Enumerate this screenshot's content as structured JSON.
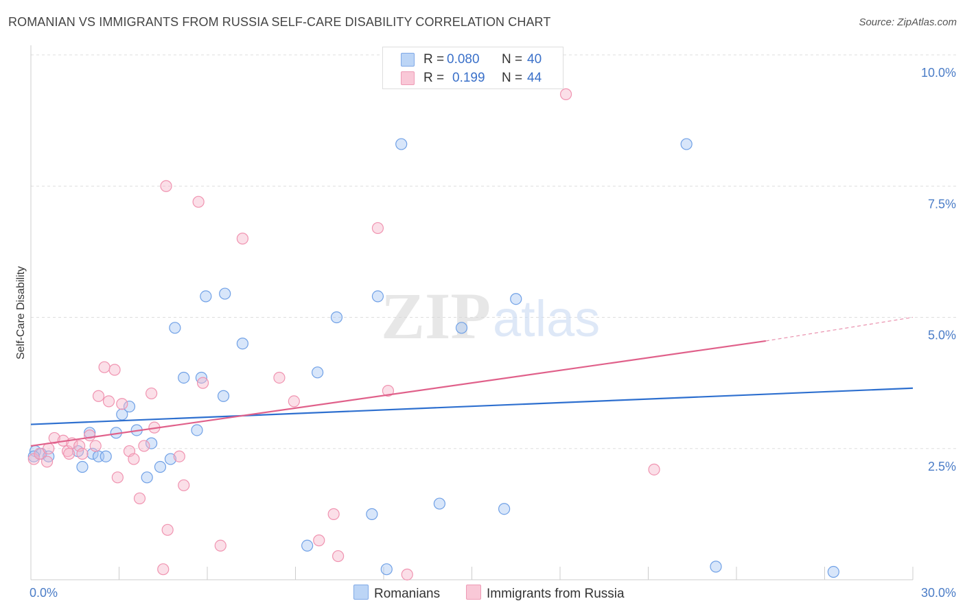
{
  "title": "ROMANIAN VS IMMIGRANTS FROM RUSSIA SELF-CARE DISABILITY CORRELATION CHART",
  "source": "Source: ZipAtlas.com",
  "watermark": {
    "zip": "ZIP",
    "atlas": "atlas"
  },
  "legend": {
    "rows": [
      {
        "r_label": "R =",
        "r_value": "0.080",
        "n_label": "N =",
        "n_value": "40",
        "color": "#a9c8f3"
      },
      {
        "r_label": "R =",
        "r_value": "0.199",
        "n_label": "N =",
        "n_value": "44",
        "color": "#f7b8cb"
      }
    ]
  },
  "bottom_legend": {
    "items": [
      {
        "label": "Romanians",
        "color": "#a9c8f3"
      },
      {
        "label": "Immigrants from Russia",
        "color": "#f7b8cb"
      }
    ]
  },
  "chart_data": {
    "type": "scatter",
    "title": "ROMANIAN VS IMMIGRANTS FROM RUSSIA SELF-CARE DISABILITY CORRELATION CHART",
    "xlabel": "",
    "ylabel": "Self-Care Disability",
    "xlim": [
      0,
      30
    ],
    "ylim": [
      0,
      10
    ],
    "x_tick_labels": [
      {
        "value": 0,
        "label": "0.0%"
      },
      {
        "value": 30,
        "label": "30.0%"
      }
    ],
    "y_tick_labels": [
      {
        "value": 2.5,
        "label": "2.5%"
      },
      {
        "value": 5.0,
        "label": "5.0%"
      },
      {
        "value": 7.5,
        "label": "7.5%"
      },
      {
        "value": 10.0,
        "label": "10.0%"
      }
    ],
    "grid": true,
    "legend_position": "top-center",
    "series": [
      {
        "name": "Romanians",
        "color": "#6fa0e6",
        "fill": "#a9c8f3",
        "trend": {
          "x": [
            0,
            30
          ],
          "y": [
            2.96,
            3.65
          ],
          "color": "#2d6fcf",
          "dashed_from": null
        },
        "points": [
          [
            0.15,
            2.45
          ],
          [
            0.35,
            2.4
          ],
          [
            0.6,
            2.35
          ],
          [
            1.6,
            2.45
          ],
          [
            1.75,
            2.15
          ],
          [
            2.1,
            2.4
          ],
          [
            2.0,
            2.8
          ],
          [
            2.3,
            2.35
          ],
          [
            2.55,
            2.35
          ],
          [
            2.9,
            2.8
          ],
          [
            3.1,
            3.15
          ],
          [
            3.35,
            3.3
          ],
          [
            3.6,
            2.85
          ],
          [
            3.95,
            1.95
          ],
          [
            4.1,
            2.6
          ],
          [
            4.4,
            2.15
          ],
          [
            4.75,
            2.3
          ],
          [
            4.9,
            4.8
          ],
          [
            5.2,
            3.85
          ],
          [
            5.65,
            2.85
          ],
          [
            5.8,
            3.85
          ],
          [
            5.95,
            5.4
          ],
          [
            6.55,
            3.5
          ],
          [
            6.6,
            5.45
          ],
          [
            7.2,
            4.5
          ],
          [
            9.4,
            0.65
          ],
          [
            9.75,
            3.95
          ],
          [
            10.4,
            5.0
          ],
          [
            11.6,
            1.25
          ],
          [
            11.8,
            5.4
          ],
          [
            12.1,
            0.2
          ],
          [
            12.6,
            8.3
          ],
          [
            13.9,
            1.45
          ],
          [
            14.65,
            4.8
          ],
          [
            16.1,
            1.35
          ],
          [
            16.5,
            5.35
          ],
          [
            22.3,
            8.3
          ],
          [
            23.3,
            0.25
          ],
          [
            27.3,
            0.15
          ],
          [
            0.1,
            2.35
          ]
        ]
      },
      {
        "name": "Immigrants from Russia",
        "color": "#f093b0",
        "fill": "#f7b8cb",
        "trend": {
          "x": [
            0,
            25
          ],
          "y": [
            2.55,
            4.55
          ],
          "x_dashed_end": 30,
          "y_dashed_end": 5.0,
          "color": "#e0608a"
        },
        "points": [
          [
            0.1,
            2.3
          ],
          [
            0.3,
            2.4
          ],
          [
            0.55,
            2.25
          ],
          [
            0.8,
            2.7
          ],
          [
            1.1,
            2.65
          ],
          [
            1.25,
            2.45
          ],
          [
            1.4,
            2.6
          ],
          [
            1.65,
            2.55
          ],
          [
            1.75,
            2.4
          ],
          [
            2.0,
            2.75
          ],
          [
            2.2,
            2.55
          ],
          [
            2.3,
            3.5
          ],
          [
            2.5,
            4.05
          ],
          [
            2.65,
            3.4
          ],
          [
            2.85,
            4.0
          ],
          [
            2.95,
            1.95
          ],
          [
            3.1,
            3.35
          ],
          [
            3.35,
            2.45
          ],
          [
            3.5,
            2.3
          ],
          [
            3.7,
            1.55
          ],
          [
            3.85,
            2.55
          ],
          [
            4.1,
            3.55
          ],
          [
            4.2,
            2.9
          ],
          [
            4.5,
            0.2
          ],
          [
            4.6,
            7.5
          ],
          [
            4.65,
            0.95
          ],
          [
            5.05,
            2.35
          ],
          [
            5.2,
            1.8
          ],
          [
            5.7,
            7.2
          ],
          [
            5.85,
            3.75
          ],
          [
            6.45,
            0.65
          ],
          [
            7.2,
            6.5
          ],
          [
            8.45,
            3.85
          ],
          [
            8.95,
            3.4
          ],
          [
            9.8,
            0.75
          ],
          [
            10.3,
            1.25
          ],
          [
            10.45,
            0.45
          ],
          [
            11.8,
            6.7
          ],
          [
            12.15,
            3.6
          ],
          [
            12.8,
            0.1
          ],
          [
            18.2,
            9.25
          ],
          [
            21.2,
            2.1
          ],
          [
            1.3,
            2.4
          ],
          [
            0.6,
            2.5
          ]
        ]
      }
    ]
  }
}
